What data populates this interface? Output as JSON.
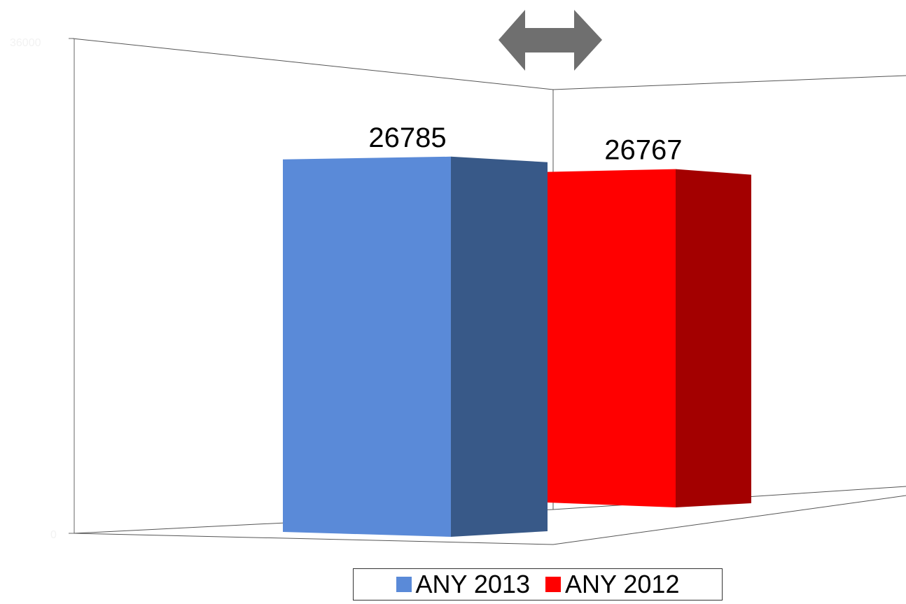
{
  "chart_data": {
    "type": "bar",
    "title": "",
    "xlabel": "",
    "ylabel": "",
    "categories": [
      ""
    ],
    "ylim": [
      0,
      36000
    ],
    "y_tick_labels": [
      "0",
      "36000"
    ],
    "series": [
      {
        "name": "ANY 2013",
        "values": [
          26785
        ],
        "data_label": "26785",
        "color": "#5A8AD8",
        "side_color": "#385988"
      },
      {
        "name": "ANY 2012",
        "values": [
          26767
        ],
        "data_label": "26767",
        "color": "#FF0000",
        "side_color": "#A30000"
      }
    ],
    "legend": {
      "position": "bottom"
    },
    "grid": false,
    "three_d": true
  },
  "decorations": {
    "double_arrow_icon_color": "#6F6F6F"
  }
}
